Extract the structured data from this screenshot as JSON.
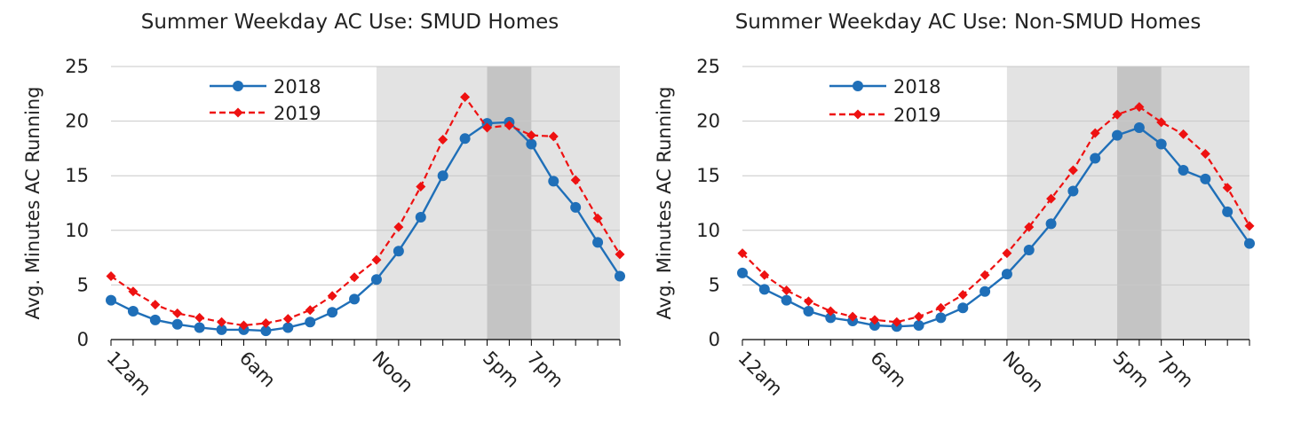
{
  "chart_data": [
    {
      "type": "line",
      "title": "Summer Weekday AC Use:  SMUD Homes",
      "ylabel": "Avg. Minutes AC Running",
      "xlabel": "",
      "ylim": [
        0,
        25
      ],
      "yticks": [
        0,
        5,
        10,
        15,
        20,
        25
      ],
      "x": [
        0,
        1,
        2,
        3,
        4,
        5,
        6,
        7,
        8,
        9,
        10,
        11,
        12,
        13,
        14,
        15,
        16,
        17,
        18,
        19,
        20,
        21,
        22,
        23
      ],
      "xtick_labels": [
        {
          "hour": 0,
          "label": "12am"
        },
        {
          "hour": 6,
          "label": "6am"
        },
        {
          "hour": 12,
          "label": "Noon"
        },
        {
          "hour": 17,
          "label": "5pm"
        },
        {
          "hour": 19,
          "label": "7pm"
        }
      ],
      "shaded_regions": [
        {
          "from": 12,
          "to": 23,
          "color": "#e3e3e3"
        },
        {
          "from": 17,
          "to": 19,
          "color": "#c4c4c4"
        }
      ],
      "grid": true,
      "legend_position": "top-left",
      "series": [
        {
          "name": "2018",
          "color": "#1f6fb8",
          "dashed": false,
          "marker": "circle",
          "values": [
            3.6,
            2.6,
            1.8,
            1.4,
            1.1,
            0.9,
            0.9,
            0.8,
            1.1,
            1.6,
            2.5,
            3.7,
            5.5,
            8.1,
            11.2,
            15.0,
            18.4,
            19.8,
            19.9,
            17.9,
            14.5,
            12.1,
            8.9,
            5.8
          ]
        },
        {
          "name": "2019",
          "color": "#ee1111",
          "dashed": true,
          "marker": "diamond",
          "values": [
            5.8,
            4.4,
            3.2,
            2.4,
            2.0,
            1.6,
            1.3,
            1.5,
            1.9,
            2.7,
            4.0,
            5.7,
            7.3,
            10.3,
            14.0,
            18.3,
            22.2,
            19.4,
            19.6,
            18.7,
            18.6,
            14.6,
            11.1,
            7.8
          ]
        }
      ]
    },
    {
      "type": "line",
      "title": "Summer Weekday AC Use: Non-SMUD Homes",
      "ylabel": "Avg. Minutes AC Running",
      "xlabel": "",
      "ylim": [
        0,
        25
      ],
      "yticks": [
        0,
        5,
        10,
        15,
        20,
        25
      ],
      "x": [
        0,
        1,
        2,
        3,
        4,
        5,
        6,
        7,
        8,
        9,
        10,
        11,
        12,
        13,
        14,
        15,
        16,
        17,
        18,
        19,
        20,
        21,
        22,
        23
      ],
      "xtick_labels": [
        {
          "hour": 0,
          "label": "12am"
        },
        {
          "hour": 6,
          "label": "6am"
        },
        {
          "hour": 12,
          "label": "Noon"
        },
        {
          "hour": 17,
          "label": "5pm"
        },
        {
          "hour": 19,
          "label": "7pm"
        }
      ],
      "shaded_regions": [
        {
          "from": 12,
          "to": 23,
          "color": "#e3e3e3"
        },
        {
          "from": 17,
          "to": 19,
          "color": "#c4c4c4"
        }
      ],
      "grid": true,
      "legend_position": "top-left",
      "series": [
        {
          "name": "2018",
          "color": "#1f6fb8",
          "dashed": false,
          "marker": "circle",
          "values": [
            6.1,
            4.6,
            3.6,
            2.6,
            2.0,
            1.7,
            1.3,
            1.2,
            1.3,
            2.0,
            2.9,
            4.4,
            6.0,
            8.2,
            10.6,
            13.6,
            16.6,
            18.7,
            19.4,
            17.9,
            15.5,
            14.7,
            11.7,
            8.8
          ]
        },
        {
          "name": "2019",
          "color": "#ee1111",
          "dashed": true,
          "marker": "diamond",
          "values": [
            7.9,
            5.9,
            4.5,
            3.5,
            2.6,
            2.1,
            1.8,
            1.6,
            2.1,
            2.9,
            4.1,
            5.9,
            7.9,
            10.3,
            12.9,
            15.5,
            18.9,
            20.6,
            21.3,
            19.9,
            18.8,
            17.0,
            13.9,
            10.4
          ]
        }
      ]
    }
  ]
}
